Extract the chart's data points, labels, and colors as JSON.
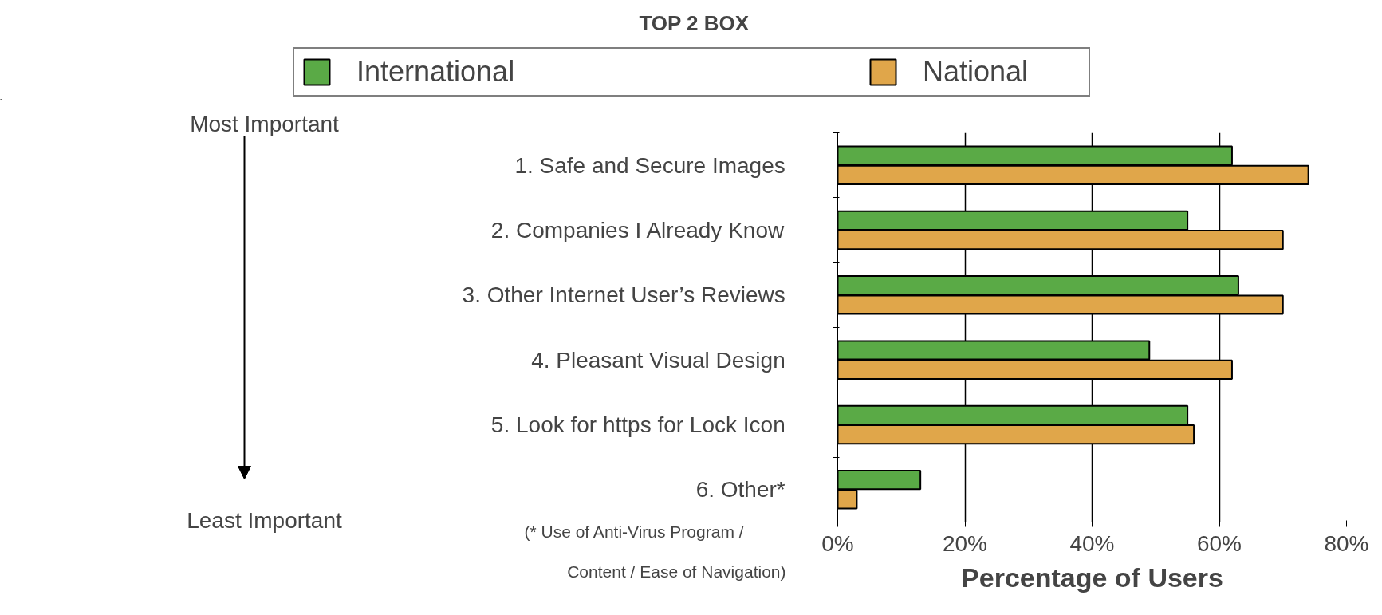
{
  "chart_data": {
    "type": "bar",
    "orientation": "horizontal",
    "title": "TOP 2 BOX",
    "categories": [
      "1.  Safe and Secure Images",
      "2.  Companies I Already Know",
      "3.  Other Internet User’s Reviews",
      "4.  Pleasant Visual Design",
      "5.  Look for https for Lock Icon",
      "6.  Other*"
    ],
    "series": [
      {
        "name": "International",
        "color": "#5aaa46",
        "values": [
          62,
          55,
          63,
          49,
          55,
          13
        ]
      },
      {
        "name": "National",
        "color": "#e0a64a",
        "values": [
          74,
          70,
          70,
          62,
          56,
          3
        ]
      }
    ],
    "xlabel": "Percentage of Users",
    "xlim": [
      0,
      80
    ],
    "xticks": [
      {
        "value": 0,
        "label": "0%"
      },
      {
        "value": 20,
        "label": "20%"
      },
      {
        "value": 40,
        "label": "40%"
      },
      {
        "value": 60,
        "label": "60%"
      },
      {
        "value": 80,
        "label": "80%"
      }
    ],
    "grid": "x",
    "legend": "top",
    "annotations": [
      "Most Important",
      "Least Important",
      "(* Use of Anti-Virus Program / Content / Ease of Navigation)"
    ]
  }
}
